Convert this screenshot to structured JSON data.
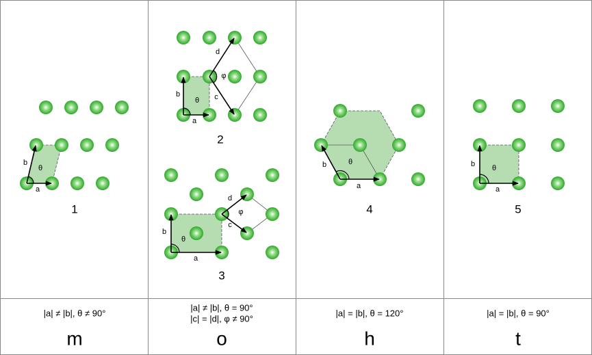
{
  "columns": [
    {
      "diagrams": [
        {
          "number": "1",
          "labels": [
            "a",
            "b",
            "θ"
          ]
        }
      ],
      "condition": [
        "|a| ≠ |b|, θ ≠ 90°"
      ],
      "symbol": "m"
    },
    {
      "diagrams": [
        {
          "number": "2",
          "labels": [
            "a",
            "b",
            "θ",
            "c",
            "d",
            "φ"
          ]
        },
        {
          "number": "3",
          "labels": [
            "a",
            "b",
            "θ",
            "c",
            "d",
            "φ"
          ]
        }
      ],
      "condition": [
        "|a| ≠ |b|, θ = 90°",
        "|c| = |d|, φ ≠ 90°"
      ],
      "symbol": "o"
    },
    {
      "diagrams": [
        {
          "number": "4",
          "labels": [
            "a",
            "b",
            "θ"
          ]
        }
      ],
      "condition": [
        "|a| = |b|, θ = 120°"
      ],
      "symbol": "h"
    },
    {
      "diagrams": [
        {
          "number": "5",
          "labels": [
            "a",
            "b",
            "θ"
          ]
        }
      ],
      "condition": [
        "|a| = |b|, θ = 90°"
      ],
      "symbol": "t"
    }
  ]
}
